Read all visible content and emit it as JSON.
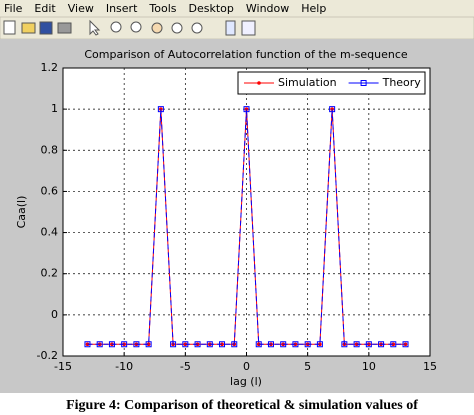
{
  "menu": [
    "File",
    "Edit",
    "View",
    "Insert",
    "Tools",
    "Desktop",
    "Window",
    "Help"
  ],
  "chart_data": {
    "type": "line",
    "title": "Comparison of Autocorrelation function of the m-sequence",
    "xlabel": "lag (l)",
    "ylabel": "Caa(l)",
    "x": [
      -13,
      -12,
      -11,
      -10,
      -9,
      -8,
      -7,
      -6,
      -5,
      -4,
      -3,
      -2,
      -1,
      0,
      1,
      2,
      3,
      4,
      5,
      6,
      7,
      8,
      9,
      10,
      11,
      12,
      13
    ],
    "series": [
      {
        "name": "Simulation",
        "color": "#ff0000",
        "marker": "dot",
        "values": [
          -0.1429,
          -0.1429,
          -0.1429,
          -0.1429,
          -0.1429,
          -0.1429,
          1,
          -0.1429,
          -0.1429,
          -0.1429,
          -0.1429,
          -0.1429,
          -0.1429,
          1,
          -0.1429,
          -0.1429,
          -0.1429,
          -0.1429,
          -0.1429,
          -0.1429,
          1,
          -0.1429,
          -0.1429,
          -0.1429,
          -0.1429,
          -0.1429,
          -0.1429
        ]
      },
      {
        "name": "Theory",
        "color": "#0000ff",
        "marker": "square",
        "values": [
          -0.1429,
          -0.1429,
          -0.1429,
          -0.1429,
          -0.1429,
          -0.1429,
          1,
          -0.1429,
          -0.1429,
          -0.1429,
          -0.1429,
          -0.1429,
          -0.1429,
          1,
          -0.1429,
          -0.1429,
          -0.1429,
          -0.1429,
          -0.1429,
          -0.1429,
          1,
          -0.1429,
          -0.1429,
          -0.1429,
          -0.1429,
          -0.1429,
          -0.1429
        ]
      }
    ],
    "xlim": [
      -15,
      15
    ],
    "xticks": [
      -15,
      -10,
      -5,
      0,
      5,
      10,
      15
    ],
    "ylim": [
      -0.2,
      1.2
    ],
    "yticks": [
      -0.2,
      0,
      0.2,
      0.4,
      0.6,
      0.8,
      1,
      1.2
    ],
    "grid": true,
    "legend": "top-right"
  },
  "caption": "Figure 4: Comparison of theoretical & simulation values of"
}
